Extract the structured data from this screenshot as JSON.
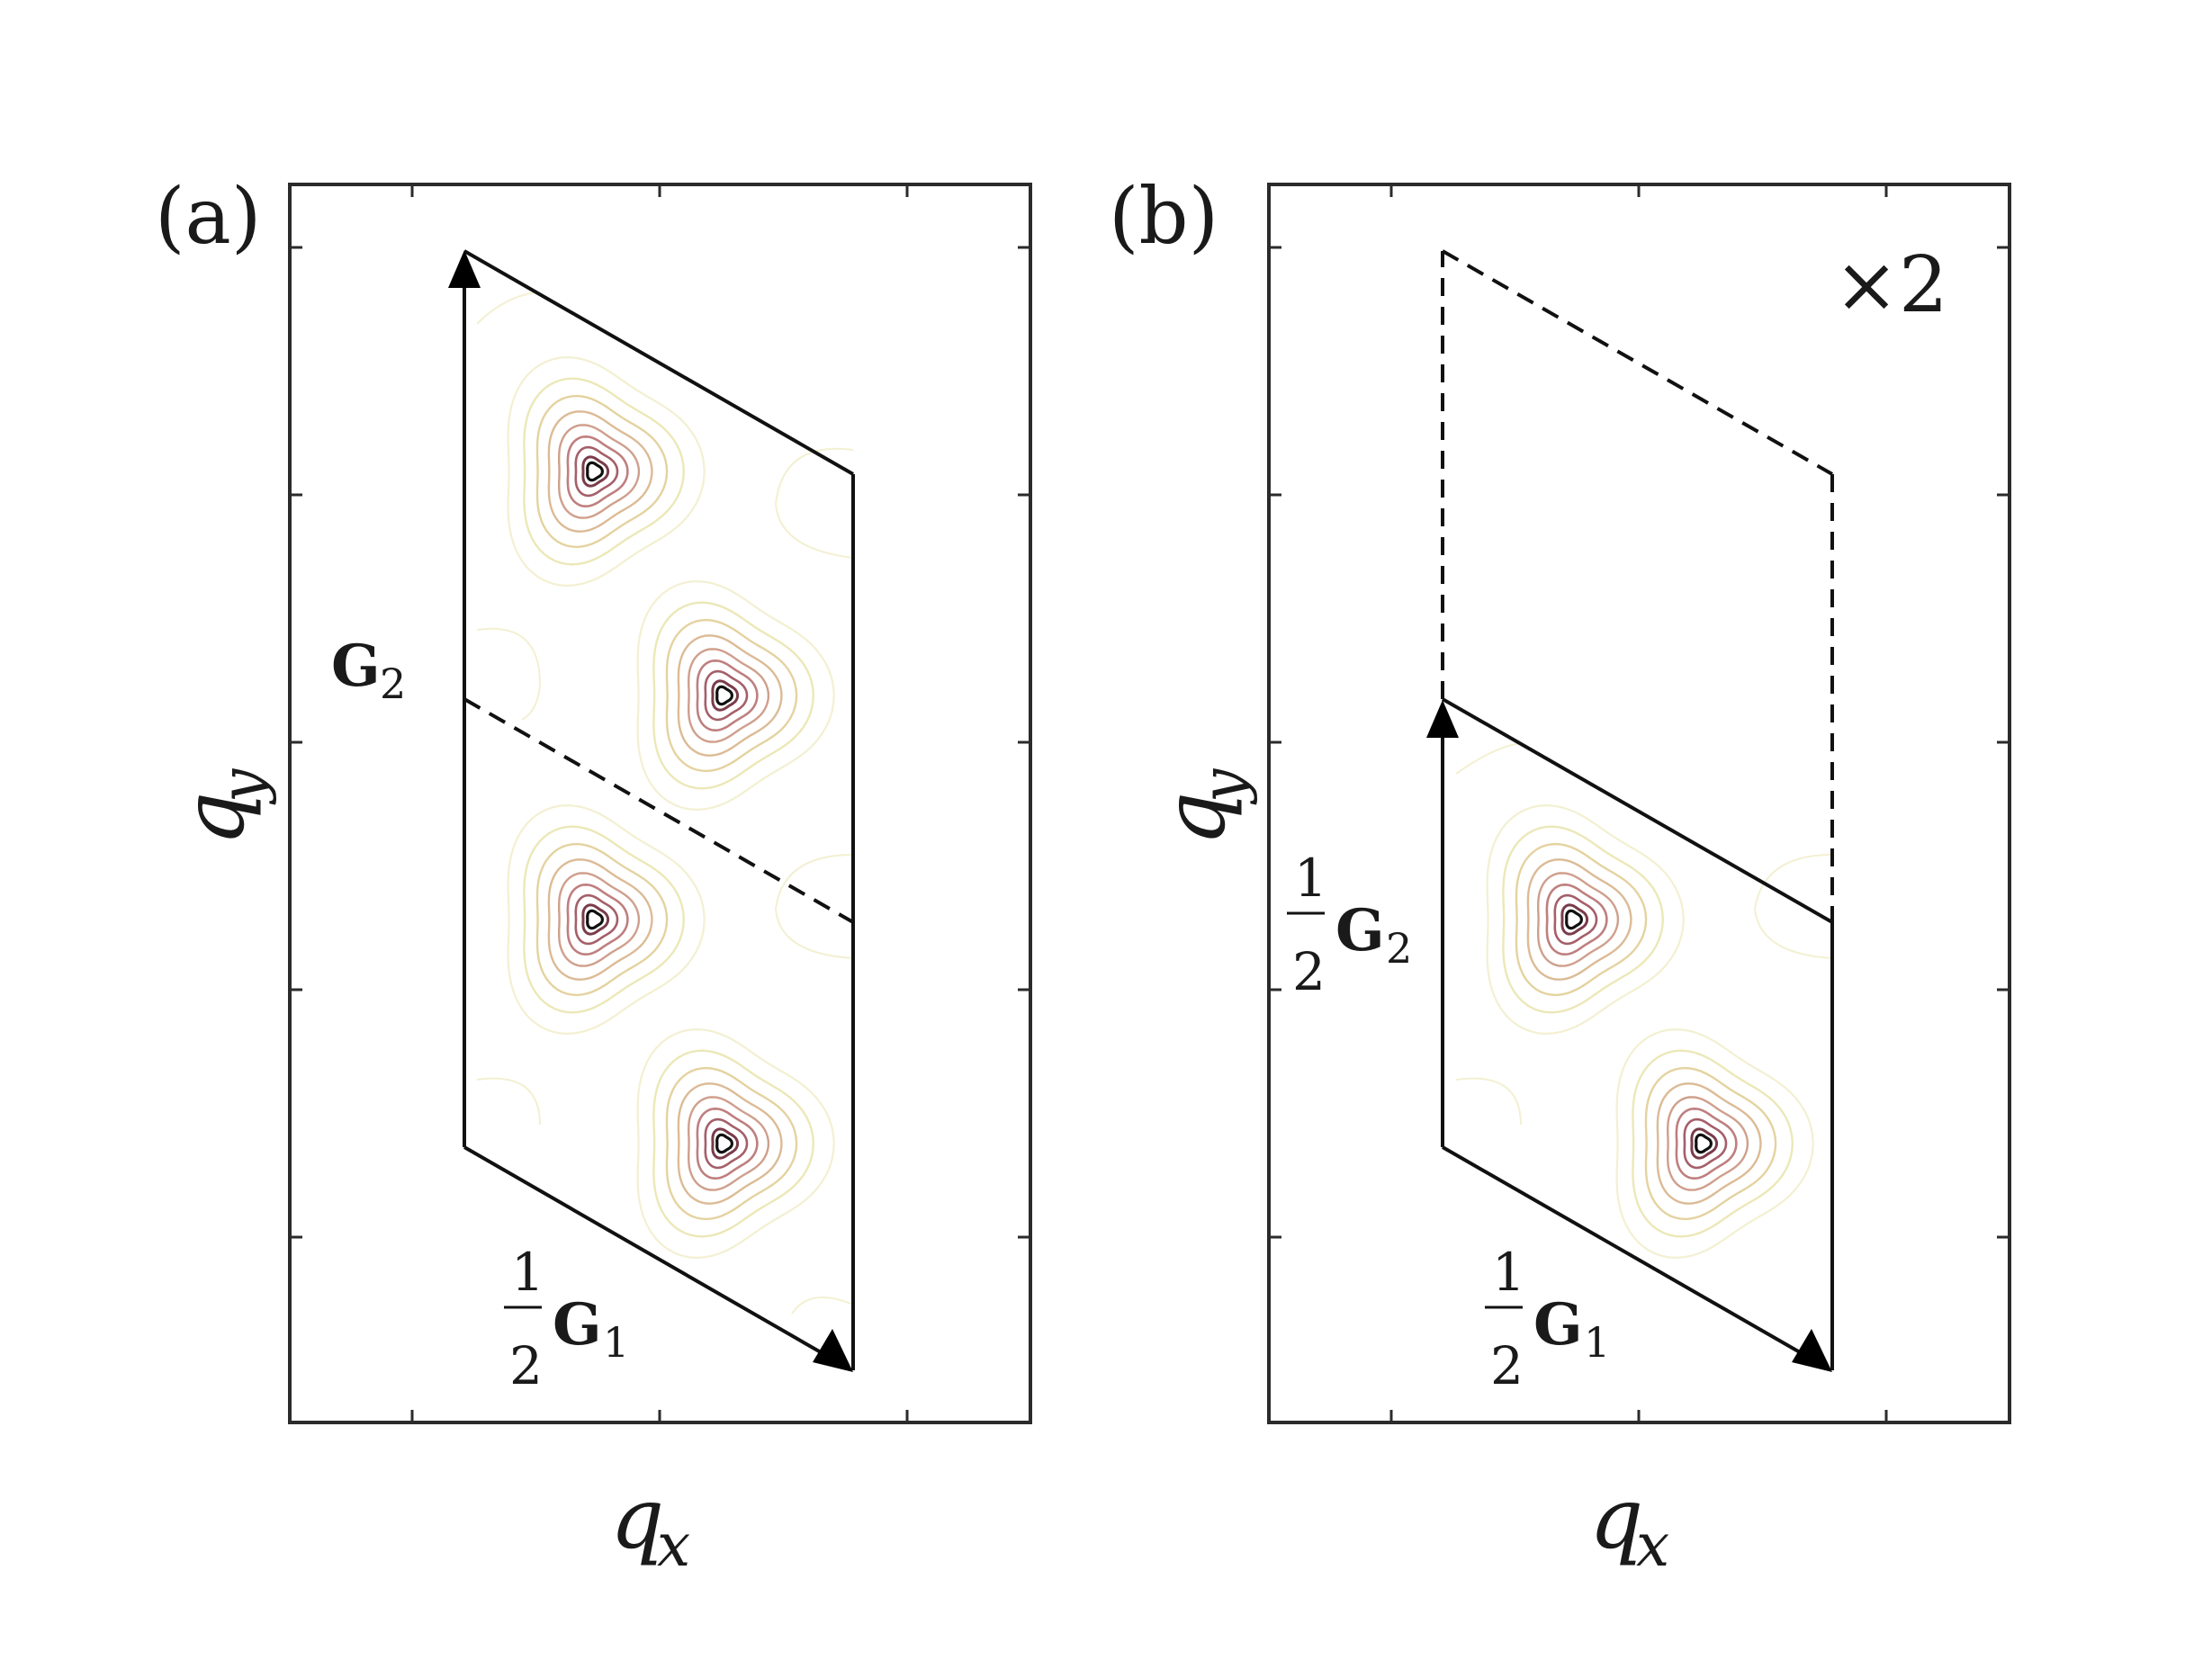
{
  "panels": [
    {
      "id": "a",
      "label": "(a)",
      "xlabel_main": "q",
      "xlabel_sub": "x",
      "ylabel_main": "q",
      "ylabel_sub": "y",
      "multiplier": "",
      "vector_horizontal": {
        "prefix_num": "1",
        "prefix_den": "2",
        "name": "G",
        "sub": "1"
      },
      "vector_vertical": {
        "prefix_num": "",
        "prefix_den": "",
        "name": "G",
        "sub": "2"
      }
    },
    {
      "id": "b",
      "label": "(b)",
      "xlabel_main": "q",
      "xlabel_sub": "x",
      "ylabel_main": "q",
      "ylabel_sub": "y",
      "multiplier": "×2",
      "vector_horizontal": {
        "prefix_num": "1",
        "prefix_den": "2",
        "name": "G",
        "sub": "1"
      },
      "vector_vertical": {
        "prefix_num": "1",
        "prefix_den": "2",
        "name": "G",
        "sub": "2"
      }
    }
  ],
  "colors": {
    "frame": "#2b2b2b",
    "contour_levels": [
      "#f3f0d2",
      "#ece8b8",
      "#e4d3a0",
      "#dcbb95",
      "#cf9f8c",
      "#bf7f7f",
      "#a55f69",
      "#7a3c4a",
      "#111111"
    ]
  }
}
